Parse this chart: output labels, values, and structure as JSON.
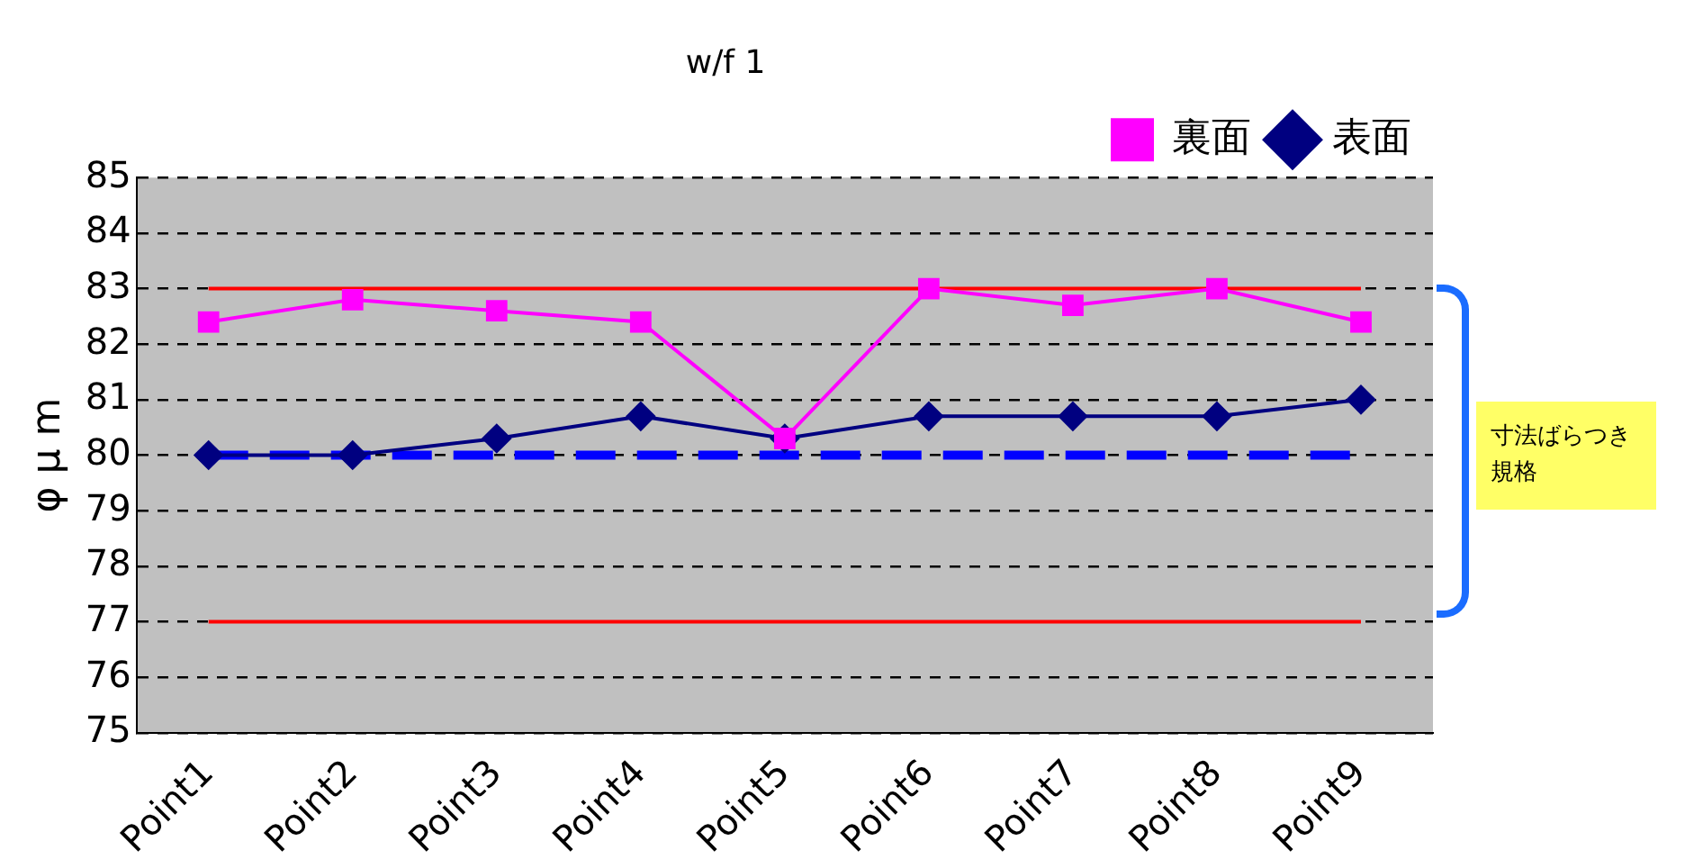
{
  "chart_data": {
    "type": "line",
    "title": "w/f 1",
    "ylabel": "φ μ m",
    "categories": [
      "Point1",
      "Point2",
      "Point3",
      "Point4",
      "Point5",
      "Point6",
      "Point7",
      "Point8",
      "Point9"
    ],
    "series": [
      {
        "name": "表面",
        "color": "#000080",
        "marker": "diamond",
        "values": [
          80.0,
          80.0,
          80.3,
          80.7,
          80.3,
          80.7,
          80.7,
          80.7,
          81.0
        ]
      },
      {
        "name": "裏面",
        "color": "#ff00ff",
        "marker": "square",
        "values": [
          82.4,
          82.8,
          82.6,
          82.4,
          80.3,
          83.0,
          82.7,
          83.0,
          82.4
        ]
      }
    ],
    "ylim": [
      75,
      85
    ],
    "yticks": [
      75,
      76,
      77,
      78,
      79,
      80,
      81,
      82,
      83,
      84,
      85
    ],
    "grid": "y",
    "legend": "top right",
    "ref_lines": [
      {
        "axis": "y",
        "value": 83,
        "color": "#ff0000",
        "line_style": "solid"
      },
      {
        "axis": "y",
        "value": 77,
        "color": "#ff0000",
        "line_style": "solid"
      },
      {
        "axis": "y",
        "value": 80,
        "color": "#0000ff",
        "line_style": "dashed"
      }
    ],
    "annotations": [
      "寸法ばらつき規格"
    ]
  }
}
